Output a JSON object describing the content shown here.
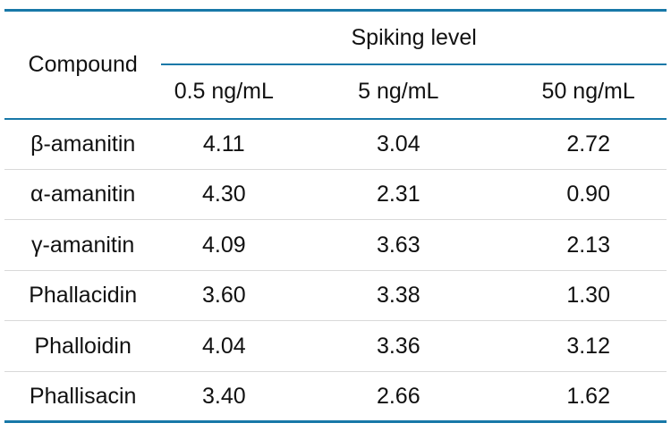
{
  "table": {
    "compound_header": "Compound",
    "spanner_label": "Spiking level",
    "level_headers": [
      "0.5 ng/mL",
      "5 ng/mL",
      "50 ng/mL"
    ],
    "rows": [
      {
        "compound": "β-amanitin",
        "values": [
          "4.11",
          "3.04",
          "2.72"
        ]
      },
      {
        "compound": "α-amanitin",
        "values": [
          "4.30",
          "2.31",
          "0.90"
        ]
      },
      {
        "compound": "γ-amanitin",
        "values": [
          "4.09",
          "3.63",
          "2.13"
        ]
      },
      {
        "compound": "Phallacidin",
        "values": [
          "3.60",
          "3.38",
          "1.30"
        ]
      },
      {
        "compound": "Phalloidin",
        "values": [
          "4.04",
          "3.36",
          "3.12"
        ]
      },
      {
        "compound": "Phallisacin",
        "values": [
          "3.40",
          "2.66",
          "1.62"
        ]
      }
    ]
  },
  "colors": {
    "accent_line": "#1878a8",
    "row_divider": "#d9d9d9",
    "text": "#111111",
    "background": "#ffffff"
  }
}
